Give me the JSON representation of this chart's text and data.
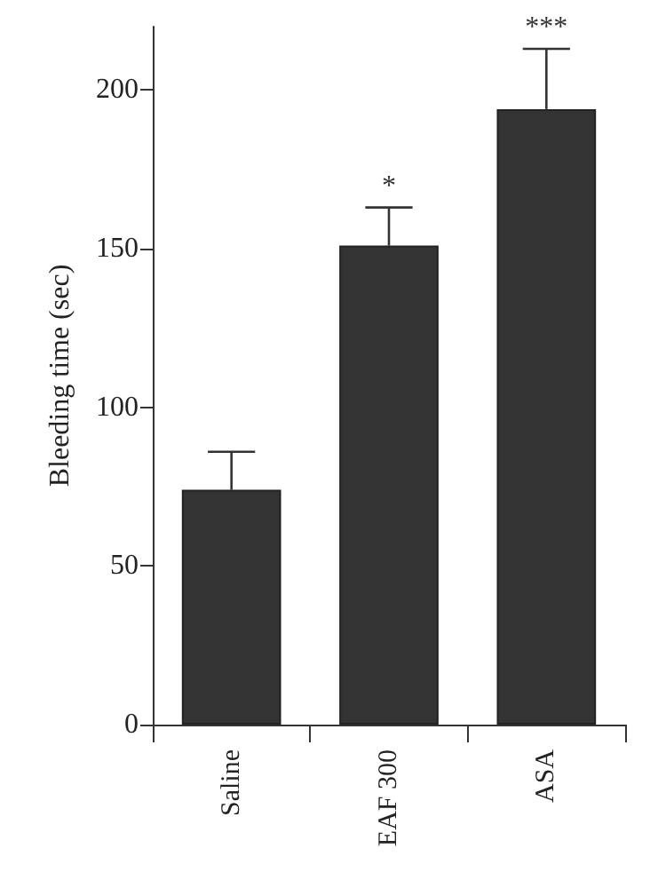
{
  "chart_data": {
    "type": "bar",
    "ylabel": "Bleeding time (sec)",
    "categories": [
      "Saline",
      "EAF 300",
      "ASA"
    ],
    "values": [
      74,
      151,
      194
    ],
    "color": "#333333",
    "errors": [
      [
        74,
        86
      ],
      [
        151,
        163
      ],
      [
        194,
        213
      ]
    ],
    "ylim": [
      0,
      220
    ],
    "yticks": [
      0,
      50,
      100,
      150,
      200
    ],
    "grid": false,
    "annotations": [
      {
        "text": "*",
        "x": "EAF 300",
        "y": 163
      },
      {
        "text": "***",
        "x": "ASA",
        "y": 213
      }
    ]
  }
}
